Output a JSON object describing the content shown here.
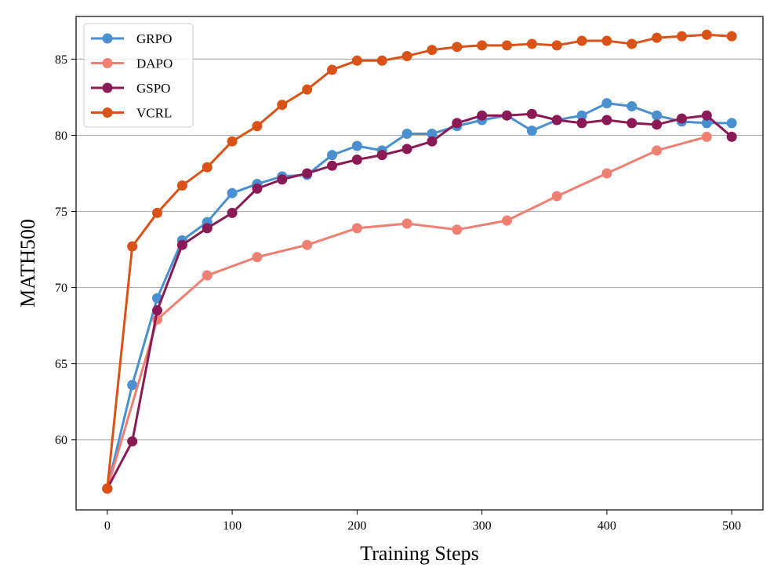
{
  "chart_data": {
    "type": "line",
    "title": "",
    "xlabel": "Training Steps",
    "ylabel": "MATH500",
    "xlim": [
      -25,
      525
    ],
    "ylim": [
      55.4,
      87.8
    ],
    "xticks": [
      0,
      100,
      200,
      300,
      400,
      500
    ],
    "yticks": [
      60,
      65,
      70,
      75,
      80,
      85
    ],
    "grid": "horizontal",
    "legend_position": "top-left",
    "series": [
      {
        "name": "GRPO",
        "color": "#4a8fd0",
        "x": [
          0,
          20,
          40,
          60,
          80,
          100,
          120,
          140,
          160,
          180,
          200,
          220,
          240,
          260,
          280,
          300,
          320,
          340,
          360,
          380,
          400,
          420,
          440,
          460,
          480,
          500
        ],
        "values": [
          56.8,
          63.6,
          69.3,
          73.1,
          74.3,
          76.2,
          76.8,
          77.3,
          77.4,
          78.7,
          79.3,
          79.0,
          80.1,
          80.1,
          80.6,
          81.0,
          81.3,
          80.3,
          81.0,
          81.3,
          82.1,
          81.9,
          81.3,
          80.9,
          80.8,
          80.8
        ]
      },
      {
        "name": "DAPO",
        "color": "#f07f73",
        "x": [
          0,
          40,
          80,
          120,
          160,
          200,
          240,
          280,
          320,
          360,
          400,
          440,
          480
        ],
        "values": [
          56.8,
          67.9,
          70.8,
          72.0,
          72.8,
          73.9,
          74.2,
          73.8,
          74.4,
          76.0,
          77.5,
          79.0,
          79.9
        ]
      },
      {
        "name": "GSPO",
        "color": "#8a1a56",
        "x": [
          0,
          20,
          40,
          60,
          80,
          100,
          120,
          140,
          160,
          180,
          200,
          220,
          240,
          260,
          280,
          300,
          320,
          340,
          360,
          380,
          400,
          420,
          440,
          460,
          480,
          500
        ],
        "values": [
          56.8,
          59.9,
          68.5,
          72.8,
          73.9,
          74.9,
          76.5,
          77.1,
          77.5,
          78.0,
          78.4,
          78.7,
          79.1,
          79.6,
          80.8,
          81.3,
          81.3,
          81.4,
          81.0,
          80.8,
          81.0,
          80.8,
          80.7,
          81.1,
          81.3,
          79.9
        ]
      },
      {
        "name": "VCRL",
        "color": "#d95319",
        "x": [
          0,
          20,
          40,
          60,
          80,
          100,
          120,
          140,
          160,
          180,
          200,
          220,
          240,
          260,
          280,
          300,
          320,
          340,
          360,
          380,
          400,
          420,
          440,
          460,
          480,
          500
        ],
        "values": [
          56.8,
          72.7,
          74.9,
          76.7,
          77.9,
          79.6,
          80.6,
          82.0,
          83.0,
          84.3,
          84.9,
          84.9,
          85.2,
          85.6,
          85.8,
          85.9,
          85.9,
          86.0,
          85.9,
          86.2,
          86.2,
          86.0,
          86.4,
          86.5,
          86.6,
          86.5
        ]
      }
    ]
  }
}
